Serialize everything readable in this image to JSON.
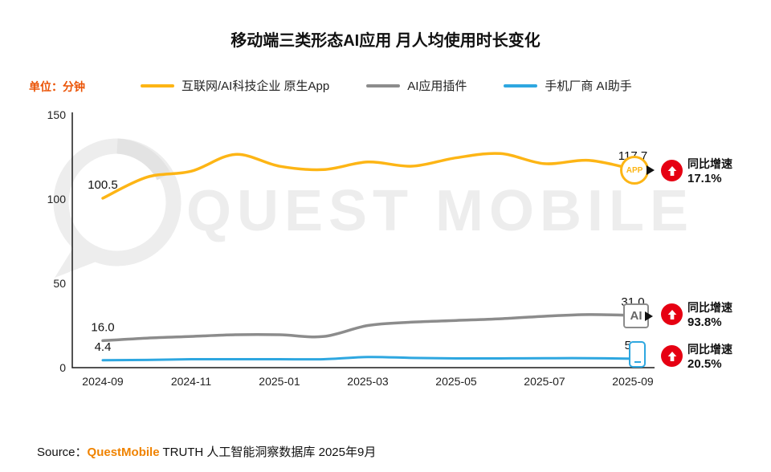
{
  "title": "移动端三类形态AI应用 月人均使用时长变化",
  "unit_label": "单位：分钟",
  "colors": {
    "accent_orange": "#F08300",
    "unit_label": "#EB5305",
    "badge_red": "#E60012",
    "axis": "#1A1A1A",
    "watermark": "#EDEDED"
  },
  "legend": [
    {
      "label": "互联网/AI科技企业 原生App",
      "color": "#FDB515"
    },
    {
      "label": "AI应用插件",
      "color": "#8C8C8C"
    },
    {
      "label": "手机厂商 AI助手",
      "color": "#2EA7E0"
    }
  ],
  "chart_data": {
    "type": "line",
    "x": [
      "2024-09",
      "2024-10",
      "2024-11",
      "2024-12",
      "2025-01",
      "2025-02",
      "2025-03",
      "2025-04",
      "2025-05",
      "2025-06",
      "2025-07",
      "2025-08",
      "2025-09"
    ],
    "x_tick_labels": [
      "2024-09",
      "2024-11",
      "2025-01",
      "2025-03",
      "2025-05",
      "2025-07",
      "2025-09"
    ],
    "yticks": [
      0,
      50,
      100,
      150
    ],
    "ylim": [
      0,
      150
    ],
    "grid": false,
    "legend_position": "top",
    "series": [
      {
        "name": "互联网/AI科技企业 原生App",
        "color": "#FDB515",
        "values": [
          100.5,
          113.0,
          116.5,
          126.5,
          119.5,
          117.5,
          122.0,
          119.5,
          124.5,
          127.0,
          121.0,
          123.0,
          117.7
        ],
        "start_label": "100.5",
        "end_label": "117.7"
      },
      {
        "name": "AI应用插件",
        "color": "#8C8C8C",
        "values": [
          16.0,
          17.5,
          18.5,
          19.5,
          19.5,
          18.5,
          25.0,
          27.0,
          28.0,
          29.0,
          30.5,
          31.5,
          31.0
        ],
        "start_label": "16.0",
        "end_label": "31.0"
      },
      {
        "name": "手机厂商 AI助手",
        "color": "#2EA7E0",
        "values": [
          4.4,
          4.6,
          5.0,
          5.0,
          5.0,
          5.0,
          6.3,
          5.8,
          5.5,
          5.5,
          5.6,
          5.6,
          5.3
        ],
        "start_label": "4.4",
        "end_label": "5.3"
      }
    ]
  },
  "annotations": [
    {
      "icon_label": "APP",
      "growth_label": "同比增速",
      "growth_value": "17.1%"
    },
    {
      "icon_label": "AI",
      "growth_label": "同比增速",
      "growth_value": "93.8%"
    },
    {
      "growth_label": "同比增速",
      "growth_value": "20.5%"
    }
  ],
  "watermark_text": "QUEST MOBILE",
  "source": {
    "prefix": "Source：",
    "brand": "QuestMobile",
    "rest": " TRUTH 人工智能洞察数据库 2025年9月"
  }
}
